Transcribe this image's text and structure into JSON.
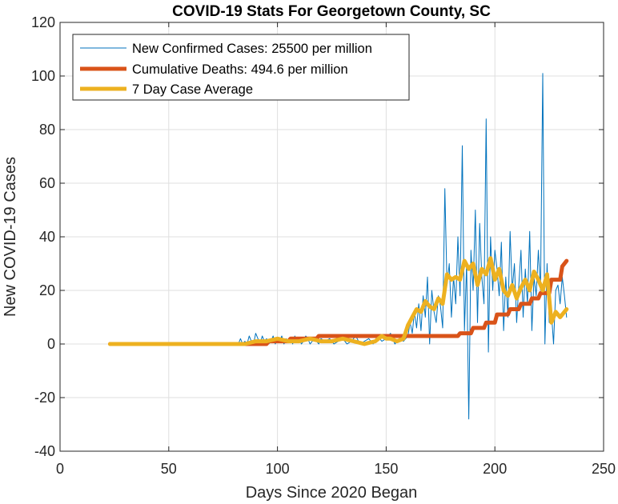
{
  "chart_data": {
    "type": "line",
    "title": "COVID-19 Stats For Georgetown County, SC",
    "xlabel": "Days Since 2020 Began",
    "ylabel": "New COVID-19 Cases",
    "xlim": [
      0,
      250
    ],
    "ylim": [
      -40,
      120
    ],
    "xticks": [
      0,
      50,
      100,
      150,
      200,
      250
    ],
    "yticks": [
      -40,
      -20,
      0,
      20,
      40,
      60,
      80,
      100,
      120
    ],
    "grid": true,
    "legend_position": "top-left",
    "series": [
      {
        "name": "New Confirmed Cases: 25500 per million",
        "color": "#0072BD",
        "style": "thin",
        "x": [
          23,
          30,
          40,
          50,
          60,
          70,
          80,
          82,
          83,
          84,
          85,
          86,
          87,
          88,
          89,
          90,
          91,
          92,
          93,
          94,
          95,
          96,
          97,
          98,
          99,
          100,
          101,
          102,
          103,
          104,
          105,
          106,
          107,
          108,
          109,
          110,
          111,
          112,
          113,
          114,
          115,
          116,
          117,
          118,
          119,
          120,
          122,
          124,
          126,
          128,
          130,
          132,
          134,
          136,
          138,
          140,
          142,
          144,
          146,
          148,
          150,
          152,
          154,
          156,
          158,
          160,
          161,
          162,
          163,
          164,
          165,
          166,
          167,
          168,
          169,
          170,
          171,
          172,
          173,
          174,
          175,
          176,
          177,
          178,
          179,
          180,
          181,
          182,
          183,
          184,
          185,
          186,
          187,
          188,
          189,
          190,
          191,
          192,
          193,
          194,
          195,
          196,
          197,
          198,
          199,
          200,
          201,
          202,
          203,
          204,
          205,
          206,
          207,
          208,
          209,
          210,
          211,
          212,
          213,
          214,
          215,
          216,
          217,
          218,
          219,
          220,
          221,
          222,
          223,
          224,
          225,
          226,
          227,
          228,
          229,
          230,
          231,
          232,
          233
        ],
        "y": [
          0,
          0,
          0,
          0,
          0,
          0,
          0,
          0,
          2,
          0,
          1,
          0,
          3,
          1,
          0,
          4,
          2,
          0,
          3,
          1,
          2,
          0,
          1,
          3,
          0,
          2,
          1,
          3,
          0,
          2,
          1,
          2,
          0,
          3,
          1,
          2,
          0,
          1,
          3,
          2,
          0,
          1,
          2,
          1,
          0,
          2,
          1,
          2,
          0,
          1,
          2,
          0,
          1,
          3,
          0,
          1,
          2,
          0,
          3,
          1,
          2,
          4,
          0,
          2,
          1,
          3,
          8,
          4,
          12,
          6,
          15,
          5,
          18,
          10,
          25,
          0,
          20,
          12,
          8,
          18,
          14,
          6,
          58,
          22,
          30,
          10,
          25,
          15,
          40,
          18,
          74,
          5,
          30,
          -28,
          35,
          20,
          50,
          8,
          45,
          25,
          15,
          84,
          -3,
          40,
          20,
          35,
          28,
          18,
          38,
          5,
          25,
          10,
          42,
          20,
          30,
          8,
          22,
          35,
          10,
          28,
          15,
          42,
          5,
          25,
          18,
          35,
          20,
          101,
          0,
          30,
          8,
          12,
          0,
          20,
          22,
          15,
          25,
          18,
          10
        ]
      },
      {
        "name": "Cumulative Deaths: 494.6 per million",
        "color": "#D95319",
        "style": "thick",
        "x": [
          23,
          95,
          96,
          105,
          106,
          118,
          119,
          183,
          184,
          189,
          190,
          195,
          196,
          200,
          201,
          206,
          207,
          211,
          212,
          216,
          217,
          220,
          221,
          225,
          226,
          230,
          231,
          233
        ],
        "y": [
          0,
          0,
          1,
          1,
          2,
          2,
          3,
          3,
          4,
          4,
          6,
          6,
          8,
          8,
          11,
          11,
          13,
          13,
          15,
          15,
          17,
          17,
          19,
          19,
          24,
          24,
          29,
          31
        ]
      },
      {
        "name": "7 Day Case Average",
        "color": "#EDB120",
        "style": "thick",
        "x": [
          23,
          80,
          85,
          90,
          95,
          100,
          105,
          110,
          115,
          120,
          125,
          130,
          135,
          140,
          145,
          148,
          150,
          152,
          155,
          158,
          160,
          162,
          164,
          166,
          168,
          170,
          172,
          174,
          176,
          178,
          180,
          182,
          184,
          186,
          188,
          190,
          192,
          194,
          196,
          198,
          200,
          202,
          204,
          206,
          208,
          210,
          212,
          214,
          216,
          218,
          220,
          222,
          224,
          226,
          228,
          230,
          232,
          233
        ],
        "y": [
          0,
          0,
          0,
          1,
          1,
          2,
          1,
          1,
          2,
          1,
          1,
          2,
          1,
          0,
          1,
          3,
          2,
          2,
          1,
          2,
          7,
          10,
          13,
          12,
          16,
          14,
          13,
          17,
          15,
          26,
          24,
          25,
          24,
          31,
          28,
          30,
          22,
          28,
          26,
          32,
          24,
          28,
          20,
          18,
          22,
          17,
          21,
          24,
          20,
          27,
          24,
          20,
          26,
          8,
          12,
          10,
          12,
          13
        ]
      }
    ]
  }
}
